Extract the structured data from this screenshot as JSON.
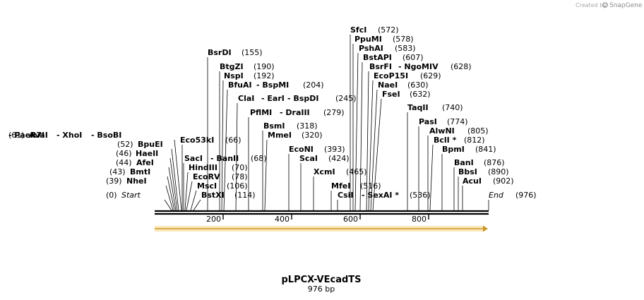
{
  "header": {
    "created_by": "Created by",
    "brand": "SnapGene"
  },
  "plasmid": {
    "name": "pLPCX-VEcadTS",
    "size_label": "976 bp"
  },
  "axis_ticks": [
    "200",
    "400",
    "600",
    "800"
  ],
  "sites": [
    {
      "id": "start",
      "parts": [
        {
          "t": "(0)"
        },
        {
          "t": "Start",
          "style": "it"
        }
      ]
    },
    {
      "id": "nhei",
      "parts": [
        {
          "t": "(39)"
        },
        {
          "t": "NheI",
          "style": "nm"
        }
      ]
    },
    {
      "id": "bmti",
      "parts": [
        {
          "t": "(43)"
        },
        {
          "t": "BmtI",
          "style": "nm"
        }
      ]
    },
    {
      "id": "afei",
      "parts": [
        {
          "t": "(44)"
        },
        {
          "t": "AfeI",
          "style": "nm"
        }
      ]
    },
    {
      "id": "haeii",
      "parts": [
        {
          "t": "(46)"
        },
        {
          "t": "HaeII",
          "style": "nm"
        }
      ]
    },
    {
      "id": "bpuei",
      "parts": [
        {
          "t": "(52)"
        },
        {
          "t": "BpuEI",
          "style": "nm"
        }
      ]
    },
    {
      "id": "avai",
      "parts": [
        {
          "t": "(61)"
        },
        {
          "t": "AvaI",
          "style": "nm"
        },
        {
          "t": "- XhoI",
          "style": "nm"
        },
        {
          "t": "- BsoBI",
          "style": "nm"
        },
        {
          "t": "- PaeR7I",
          "style": "nm"
        }
      ]
    },
    {
      "id": "eco53ki",
      "parts": [
        {
          "t": "Eco53kI",
          "style": "nm"
        },
        {
          "t": "(66)"
        }
      ]
    },
    {
      "id": "saci",
      "parts": [
        {
          "t": "SacI",
          "style": "nm"
        },
        {
          "t": "- BanII",
          "style": "nm"
        },
        {
          "t": "(68)"
        }
      ]
    },
    {
      "id": "hindiii",
      "parts": [
        {
          "t": "HindIII",
          "style": "nm"
        },
        {
          "t": "(70)"
        }
      ]
    },
    {
      "id": "ecorv",
      "parts": [
        {
          "t": "EcoRV",
          "style": "nm"
        },
        {
          "t": "(78)"
        }
      ]
    },
    {
      "id": "msci",
      "parts": [
        {
          "t": "MscI",
          "style": "nm"
        },
        {
          "t": "(106)"
        }
      ]
    },
    {
      "id": "bstxi",
      "parts": [
        {
          "t": "BstXI",
          "style": "nm"
        },
        {
          "t": "(114)"
        }
      ]
    },
    {
      "id": "bsrdi",
      "parts": [
        {
          "t": "BsrDI",
          "style": "nm"
        },
        {
          "t": "(155)"
        }
      ]
    },
    {
      "id": "btgzi",
      "parts": [
        {
          "t": "BtgZI",
          "style": "nm"
        },
        {
          "t": "(190)"
        }
      ]
    },
    {
      "id": "nspi",
      "parts": [
        {
          "t": "NspI",
          "style": "nm"
        },
        {
          "t": "(192)"
        }
      ]
    },
    {
      "id": "bfuai",
      "parts": [
        {
          "t": "BfuAI",
          "style": "nm"
        },
        {
          "t": "- BspMI",
          "style": "nm"
        },
        {
          "t": "(204)"
        }
      ]
    },
    {
      "id": "clai",
      "parts": [
        {
          "t": "ClaI",
          "style": "nm"
        },
        {
          "t": "- EarI",
          "style": "nm"
        },
        {
          "t": "- BspDI",
          "style": "nm"
        },
        {
          "t": "(245)"
        }
      ]
    },
    {
      "id": "pflmi",
      "parts": [
        {
          "t": "PflMI",
          "style": "nm"
        },
        {
          "t": "- DraIII",
          "style": "nm"
        },
        {
          "t": "(279)"
        }
      ]
    },
    {
      "id": "bsmi",
      "parts": [
        {
          "t": "BsmI",
          "style": "nm"
        },
        {
          "t": "(318)"
        }
      ]
    },
    {
      "id": "mmei",
      "parts": [
        {
          "t": "MmeI",
          "style": "nm"
        },
        {
          "t": "(320)"
        }
      ]
    },
    {
      "id": "econi",
      "parts": [
        {
          "t": "EcoNI",
          "style": "nm"
        },
        {
          "t": "(393)"
        }
      ]
    },
    {
      "id": "scai",
      "parts": [
        {
          "t": "ScaI",
          "style": "nm"
        },
        {
          "t": "(424)"
        }
      ]
    },
    {
      "id": "xcmi",
      "parts": [
        {
          "t": "XcmI",
          "style": "nm"
        },
        {
          "t": "(465)"
        }
      ]
    },
    {
      "id": "mfei",
      "parts": [
        {
          "t": "MfeI",
          "style": "nm"
        },
        {
          "t": "(516)"
        }
      ]
    },
    {
      "id": "csii",
      "parts": [
        {
          "t": "CsiI",
          "style": "nm"
        },
        {
          "t": "- SexAI *",
          "style": "nm"
        },
        {
          "t": "(536)"
        }
      ]
    },
    {
      "id": "sfci",
      "parts": [
        {
          "t": "SfcI",
          "style": "nm"
        },
        {
          "t": "(572)"
        }
      ]
    },
    {
      "id": "ppumi",
      "parts": [
        {
          "t": "PpuMI",
          "style": "nm"
        },
        {
          "t": "(578)"
        }
      ]
    },
    {
      "id": "pshai",
      "parts": [
        {
          "t": "PshAI",
          "style": "nm"
        },
        {
          "t": "(583)"
        }
      ]
    },
    {
      "id": "bstapi",
      "parts": [
        {
          "t": "BstAPI",
          "style": "nm"
        },
        {
          "t": "(607)"
        }
      ]
    },
    {
      "id": "bsrfi",
      "parts": [
        {
          "t": "BsrFI",
          "style": "nm"
        },
        {
          "t": "- NgoMIV",
          "style": "nm"
        },
        {
          "t": "(628)"
        }
      ]
    },
    {
      "id": "ecop15i",
      "parts": [
        {
          "t": "EcoP15I",
          "style": "nm"
        },
        {
          "t": "(629)"
        }
      ]
    },
    {
      "id": "naei",
      "parts": [
        {
          "t": "NaeI",
          "style": "nm"
        },
        {
          "t": "(630)"
        }
      ]
    },
    {
      "id": "fsei",
      "parts": [
        {
          "t": "FseI",
          "style": "nm"
        },
        {
          "t": "(632)"
        }
      ]
    },
    {
      "id": "taqii",
      "parts": [
        {
          "t": "TaqII",
          "style": "nm"
        },
        {
          "t": "(740)"
        }
      ]
    },
    {
      "id": "pasi",
      "parts": [
        {
          "t": "PasI",
          "style": "nm"
        },
        {
          "t": "(774)"
        }
      ]
    },
    {
      "id": "alwni",
      "parts": [
        {
          "t": "AlwNI",
          "style": "nm"
        },
        {
          "t": "(805)"
        }
      ]
    },
    {
      "id": "bcli",
      "parts": [
        {
          "t": "BclI *",
          "style": "nm"
        },
        {
          "t": "(812)"
        }
      ]
    },
    {
      "id": "bpmi",
      "parts": [
        {
          "t": "BpmI",
          "style": "nm"
        },
        {
          "t": "(841)"
        }
      ]
    },
    {
      "id": "bani",
      "parts": [
        {
          "t": "BanI",
          "style": "nm"
        },
        {
          "t": "(876)"
        }
      ]
    },
    {
      "id": "bbsi",
      "parts": [
        {
          "t": "BbsI",
          "style": "nm"
        },
        {
          "t": "(890)"
        }
      ]
    },
    {
      "id": "acui",
      "parts": [
        {
          "t": "AcuI",
          "style": "nm"
        },
        {
          "t": "(902)"
        }
      ]
    },
    {
      "id": "end",
      "parts": [
        {
          "t": "End",
          "style": "it"
        },
        {
          "t": "(976)"
        }
      ]
    }
  ]
}
